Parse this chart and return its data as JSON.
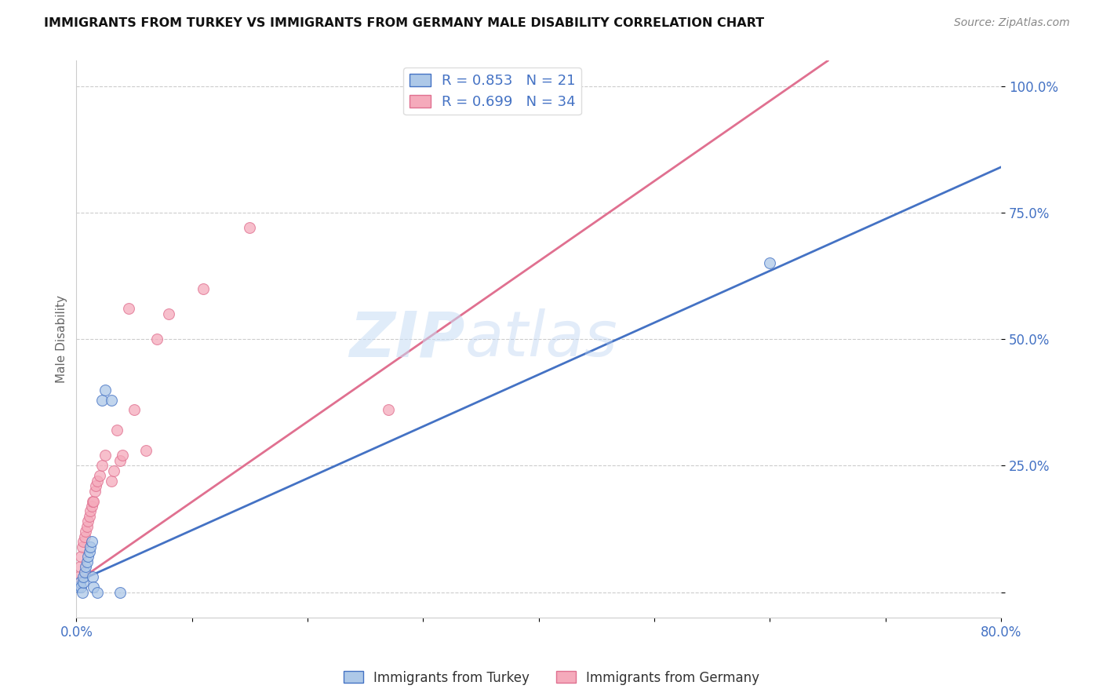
{
  "title": "IMMIGRANTS FROM TURKEY VS IMMIGRANTS FROM GERMANY MALE DISABILITY CORRELATION CHART",
  "source": "Source: ZipAtlas.com",
  "ylabel": "Male Disability",
  "xlim": [
    0.0,
    0.8
  ],
  "ylim": [
    -0.05,
    1.05
  ],
  "x_ticks": [
    0.0,
    0.1,
    0.2,
    0.3,
    0.4,
    0.5,
    0.6,
    0.7,
    0.8
  ],
  "x_tick_labels": [
    "0.0%",
    "",
    "",
    "",
    "",
    "",
    "",
    "",
    "80.0%"
  ],
  "y_ticks": [
    0.0,
    0.25,
    0.5,
    0.75,
    1.0
  ],
  "y_tick_labels": [
    "",
    "25.0%",
    "50.0%",
    "75.0%",
    "100.0%"
  ],
  "turkey_color": "#adc8e8",
  "germany_color": "#f5aabb",
  "turkey_line_color": "#4472c4",
  "germany_line_color": "#e07090",
  "turkey_R": 0.853,
  "turkey_N": 21,
  "germany_R": 0.699,
  "germany_N": 34,
  "watermark_zip": "ZIP",
  "watermark_atlas": "atlas",
  "background_color": "#ffffff",
  "grid_color": "#cccccc",
  "turkey_x": [
    0.002,
    0.003,
    0.004,
    0.005,
    0.006,
    0.006,
    0.007,
    0.008,
    0.009,
    0.01,
    0.011,
    0.012,
    0.013,
    0.014,
    0.015,
    0.018,
    0.022,
    0.025,
    0.03,
    0.038,
    0.6
  ],
  "turkey_y": [
    0.01,
    0.02,
    0.01,
    0.0,
    0.02,
    0.03,
    0.04,
    0.05,
    0.06,
    0.07,
    0.08,
    0.09,
    0.1,
    0.03,
    0.01,
    0.0,
    0.38,
    0.4,
    0.38,
    0.0,
    0.65
  ],
  "germany_x": [
    0.001,
    0.002,
    0.003,
    0.004,
    0.005,
    0.006,
    0.007,
    0.008,
    0.009,
    0.01,
    0.011,
    0.012,
    0.013,
    0.014,
    0.015,
    0.016,
    0.017,
    0.018,
    0.02,
    0.022,
    0.025,
    0.03,
    0.032,
    0.035,
    0.038,
    0.04,
    0.045,
    0.05,
    0.06,
    0.07,
    0.08,
    0.11,
    0.15,
    0.27
  ],
  "germany_y": [
    0.02,
    0.03,
    0.05,
    0.07,
    0.09,
    0.1,
    0.11,
    0.12,
    0.13,
    0.14,
    0.15,
    0.16,
    0.17,
    0.18,
    0.18,
    0.2,
    0.21,
    0.22,
    0.23,
    0.25,
    0.27,
    0.22,
    0.24,
    0.32,
    0.26,
    0.27,
    0.56,
    0.36,
    0.28,
    0.5,
    0.55,
    0.6,
    0.72,
    0.36
  ],
  "turkey_line_x": [
    0.0,
    0.8
  ],
  "turkey_line_y": [
    0.02,
    0.84
  ],
  "germany_line_x": [
    0.0,
    0.65
  ],
  "germany_line_y": [
    0.02,
    1.05
  ]
}
